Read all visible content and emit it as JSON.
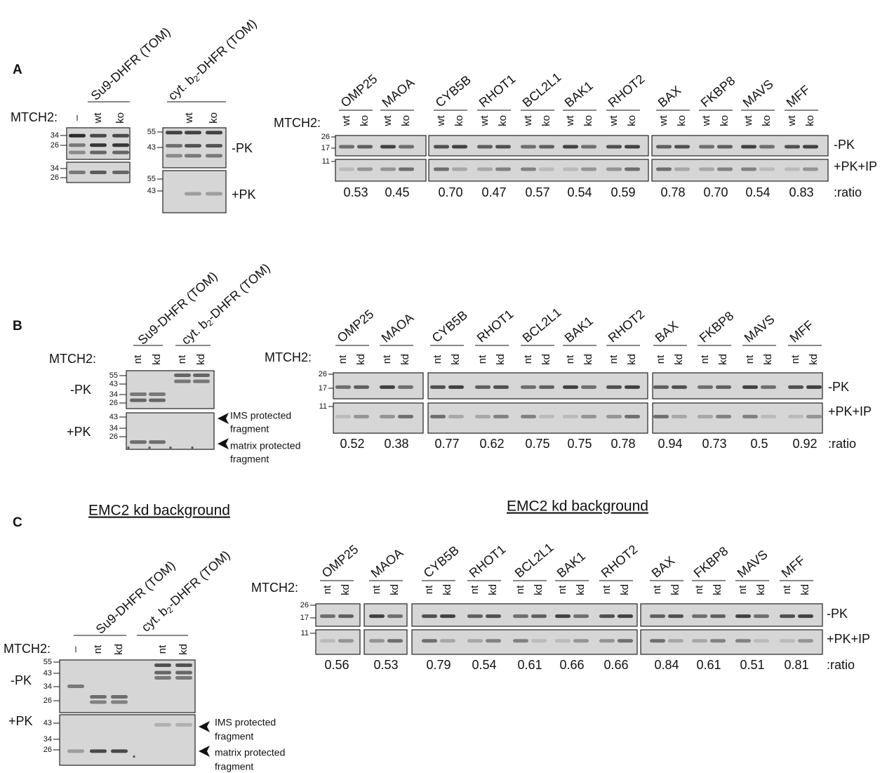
{
  "panels": [
    {
      "label": "A",
      "left": {
        "mtch2": "MTCH2:",
        "groups": [
          {
            "name": [
              "Su9-DHFR (TOM)"
            ],
            "lanes": [
              "–",
              "wt",
              "ko"
            ]
          },
          {
            "name": [
              "cyt. b",
              "2",
              "-DHFR (TOM)"
            ],
            "lanes": [
              "wt",
              "ko"
            ]
          }
        ],
        "blots": [
          {
            "markers_minus": [
              34,
              26
            ],
            "markers_plus": [
              34,
              26
            ]
          },
          {
            "markers_minus": [
              55,
              43
            ],
            "markers_plus": [
              55,
              43
            ]
          }
        ],
        "minus": "-PK",
        "plus": "+PK"
      },
      "right": {
        "mtch2": "MTCH2:",
        "lanes": [
          "wt",
          "ko"
        ],
        "proteins": [
          "OMP25",
          "MAOA",
          "CYB5B",
          "RHOT1",
          "BCL2L1",
          "BAK1",
          "RHOT2",
          "BAX",
          "FKBP8",
          "MAVS",
          "MFF"
        ],
        "ratios": [
          "0.53",
          "0.45",
          "0.70",
          "0.47",
          "0.57",
          "0.54",
          "0.59",
          "0.78",
          "0.70",
          "0.54",
          "0.83"
        ],
        "markers_minus": [
          26,
          17
        ],
        "markers_plus": [
          11
        ],
        "minus": "-PK",
        "plus": "+PK+IP",
        "ratio_label": ":ratio"
      }
    },
    {
      "label": "B",
      "left": {
        "mtch2": "MTCH2:",
        "groups": [
          {
            "name": [
              "Su9-DHFR (TOM)"
            ],
            "lanes": [
              "nt",
              "kd"
            ]
          },
          {
            "name": [
              "cyt. b",
              "2",
              "-DHFR (TOM)"
            ],
            "lanes": [
              "nt",
              "kd"
            ]
          }
        ],
        "blots": [
          {
            "markers_minus": [
              55,
              43,
              34,
              26
            ],
            "markers_plus": [
              43,
              34,
              26
            ]
          }
        ],
        "minus": "-PK",
        "plus": "+PK",
        "asterisks": [
          "*",
          "*",
          "*",
          "*"
        ],
        "fragments": [
          [
            "IMS protected",
            "fragment"
          ],
          [
            "matrix protected",
            "fragment"
          ]
        ]
      },
      "right": {
        "mtch2": "MTCH2:",
        "lanes": [
          "nt",
          "kd"
        ],
        "proteins": [
          "OMP25",
          "MAOA",
          "CYB5B",
          "RHOT1",
          "BCL2L1",
          "BAK1",
          "RHOT2",
          "BAX",
          "FKBP8",
          "MAVS",
          "MFF"
        ],
        "ratios": [
          "0.52",
          "0.38",
          "0.77",
          "0.62",
          "0.75",
          "0.75",
          "0.78",
          "0.94",
          "0.73",
          "0.5",
          "0.92"
        ],
        "markers_minus": [
          26,
          17
        ],
        "markers_plus": [
          11
        ],
        "minus": "-PK",
        "plus": "+PK+IP",
        "ratio_label": ":ratio"
      }
    },
    {
      "label": "C",
      "title_left": "EMC2 kd background",
      "title_right": "EMC2 kd background",
      "left": {
        "mtch2": "MTCH2:",
        "groups": [
          {
            "name": [
              "Su9-DHFR (TOM)"
            ],
            "lanes": [
              "–",
              "nt",
              "kd"
            ]
          },
          {
            "name": [
              "cyt. b",
              "2",
              "-DHFR (TOM)"
            ],
            "lanes": [
              "nt",
              "kd"
            ]
          }
        ],
        "blots": [
          {
            "markers_minus": [
              55,
              43,
              34,
              26
            ],
            "markers_plus": [
              43,
              34,
              26
            ]
          }
        ],
        "minus": "-PK",
        "plus": "+PK",
        "asterisks": [
          "*"
        ],
        "fragments": [
          [
            "IMS protected",
            "fragment"
          ],
          [
            "matrix protected",
            "fragment"
          ]
        ]
      },
      "right": {
        "mtch2": "MTCH2:",
        "lanes": [
          "nt",
          "kd"
        ],
        "proteins": [
          "OMP25",
          "MAOA",
          "CYB5B",
          "RHOT1",
          "BCL2L1",
          "BAK1",
          "RHOT2",
          "BAX",
          "FKBP8",
          "MAVS",
          "MFF"
        ],
        "ratios": [
          "0.56",
          "0.53",
          "0.79",
          "0.54",
          "0.61",
          "0.66",
          "0.66",
          "0.84",
          "0.61",
          "0.51",
          "0.81"
        ],
        "markers_minus": [
          26,
          17
        ],
        "markers_plus": [
          11
        ],
        "minus": "-PK",
        "plus": "+PK+IP",
        "ratio_label": ":ratio"
      }
    }
  ]
}
